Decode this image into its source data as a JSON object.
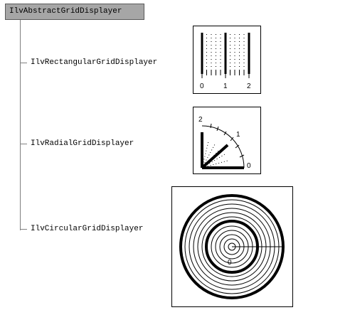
{
  "root": {
    "label": "IlvAbstractGridDisplayer"
  },
  "children": [
    {
      "label": "IlvRectangularGridDisplayer",
      "ticks": [
        "0",
        "1",
        "2"
      ]
    },
    {
      "label": "IlvRadialGridDisplayer",
      "ticks": [
        "0",
        "1",
        "2"
      ]
    },
    {
      "label": "IlvCircularGridDisplayer",
      "ticks": [
        "0"
      ]
    }
  ]
}
